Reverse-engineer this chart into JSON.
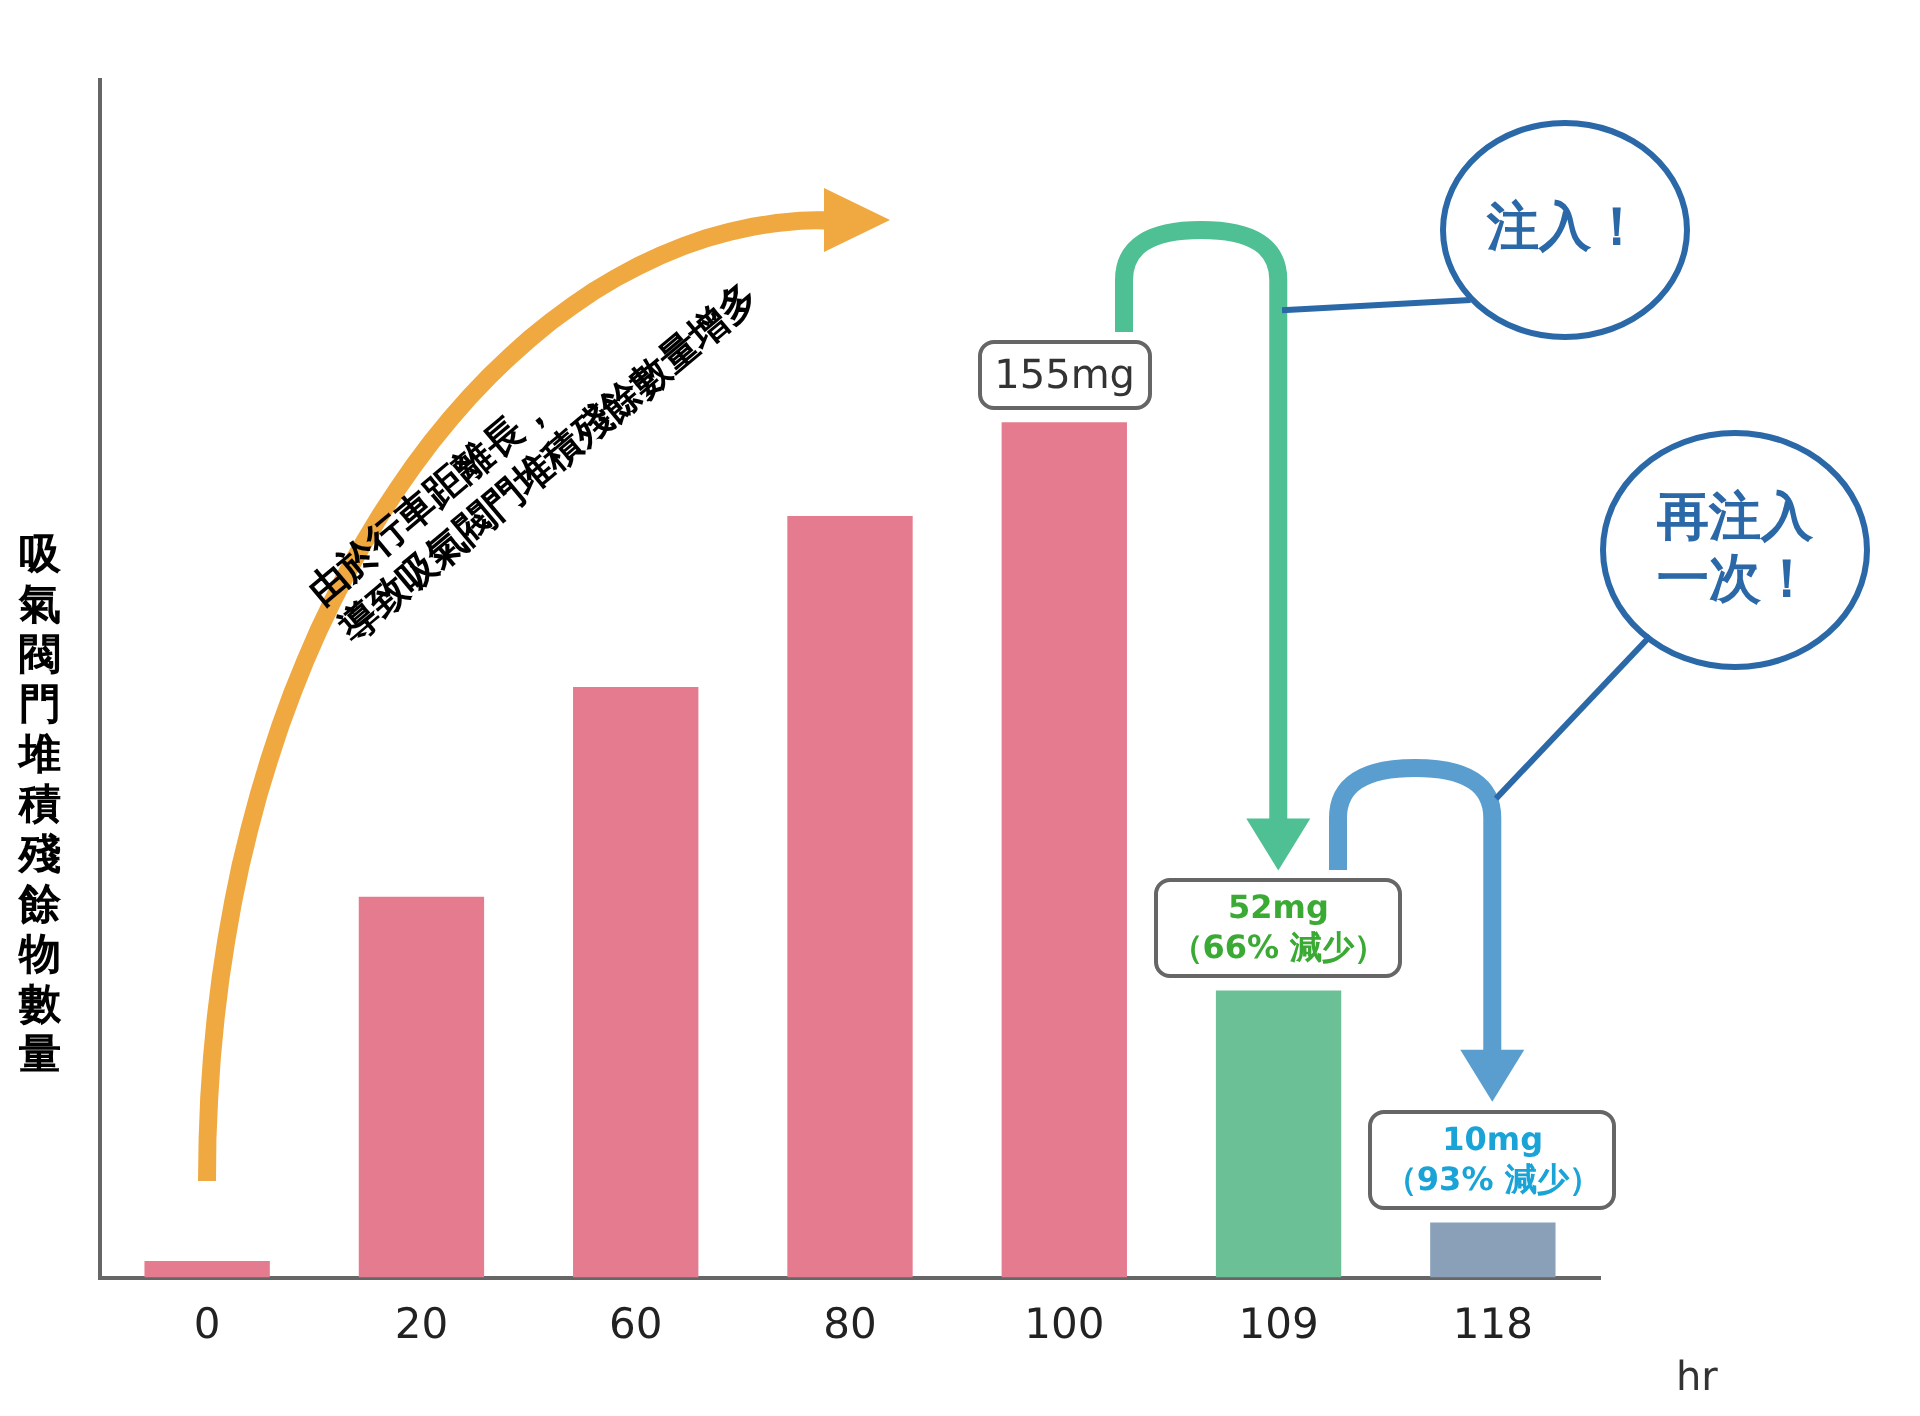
{
  "chart_data": {
    "type": "bar",
    "xlabel": "hr",
    "ylabel": "吸氣閥門堆積殘餘物數量",
    "categories": [
      "0",
      "20",
      "60",
      "80",
      "100",
      "109",
      "118"
    ],
    "values": [
      3,
      69,
      107,
      138,
      155,
      52,
      10
    ],
    "colors": [
      "#e57b8e",
      "#e57b8e",
      "#e57b8e",
      "#e57b8e",
      "#e57b8e",
      "#6cc096",
      "#8aa0b8"
    ],
    "value_labels": [
      null,
      null,
      null,
      null,
      "155mg",
      "52mg",
      "10mg"
    ],
    "tick_labels": "x",
    "annotations": [
      "由於行車距離長，",
      "導致吸氣閥門堆積殘餘數量增多",
      "注入！",
      "再注入一次！",
      "（66% 減少）",
      "（93% 減少）"
    ]
  }
}
